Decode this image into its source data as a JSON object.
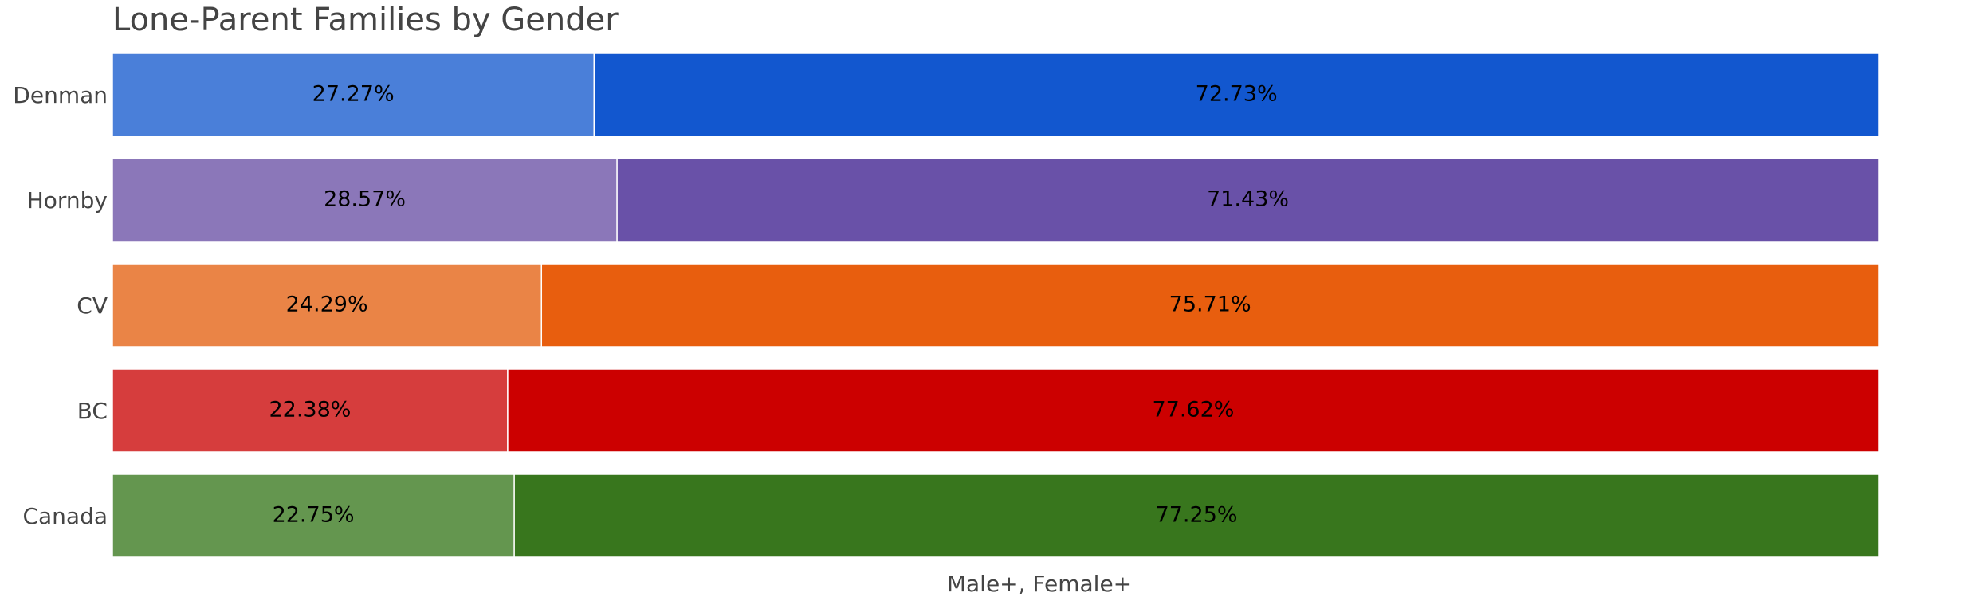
{
  "chart_data": {
    "type": "bar",
    "orientation": "horizontal",
    "stacked": true,
    "title": "Lone-Parent Families by Gender",
    "xlabel": "Male+, Female+",
    "ylabel": "",
    "xlim": [
      0,
      100
    ],
    "grid": false,
    "legend": "none",
    "categories": [
      "Denman",
      "Hornby",
      "CV",
      "BC",
      "Canada"
    ],
    "series": [
      {
        "name": "Male+",
        "values": [
          27.27,
          28.57,
          24.29,
          22.38,
          22.75
        ],
        "labels": [
          "27.27%",
          "28.57%",
          "24.29%",
          "22.38%",
          "22.75%"
        ],
        "colors": [
          "#4a7fd9",
          "#8b77b9",
          "#ea8446",
          "#d63d3d",
          "#64964f"
        ]
      },
      {
        "name": "Female+",
        "values": [
          72.73,
          71.43,
          75.71,
          77.62,
          77.25
        ],
        "labels": [
          "72.73%",
          "71.43%",
          "75.71%",
          "77.62%",
          "77.25%"
        ],
        "colors": [
          "#1257cf",
          "#6951a8",
          "#e85e0e",
          "#cc0000",
          "#38761d"
        ]
      }
    ],
    "text_color": "#444444",
    "label_color": "#000000"
  }
}
